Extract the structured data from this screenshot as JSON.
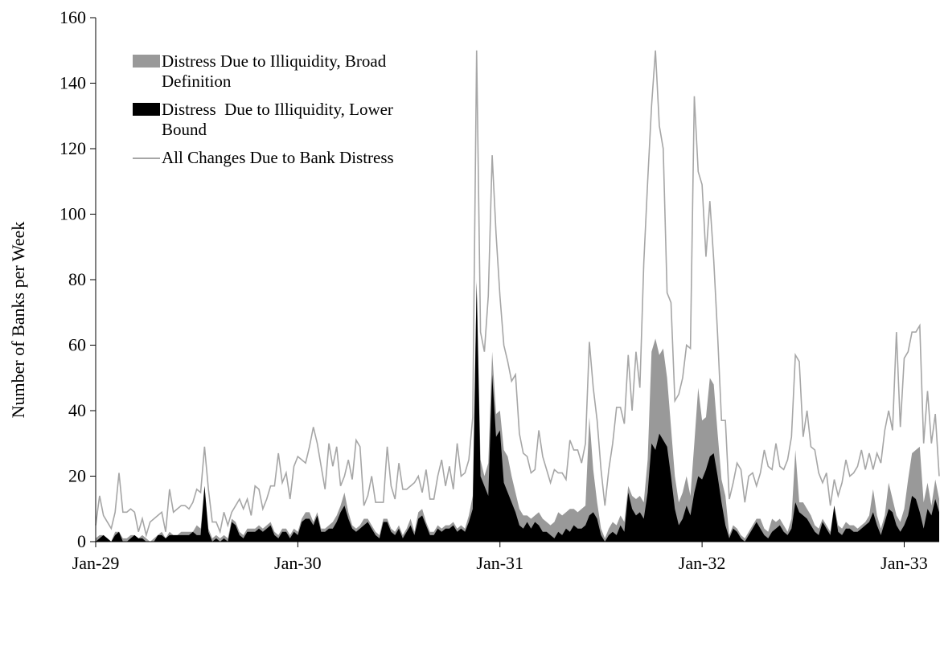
{
  "chart_data": {
    "type": "area",
    "y_label": "Number of Banks per Week",
    "legend": "upper left",
    "xlim": [
      0,
      217
    ],
    "xticks": [
      {
        "value": 0,
        "label": "Jan-29"
      },
      {
        "value": 52,
        "label": "Jan-30"
      },
      {
        "value": 104,
        "label": "Jan-31"
      },
      {
        "value": 156,
        "label": "Jan-32"
      },
      {
        "value": 208,
        "label": "Jan-33"
      }
    ],
    "ylim": [
      0,
      160
    ],
    "yticks": [
      0,
      20,
      40,
      60,
      80,
      100,
      120,
      140,
      160
    ],
    "x": [
      0,
      1,
      2,
      3,
      4,
      5,
      6,
      7,
      8,
      9,
      10,
      11,
      12,
      13,
      14,
      15,
      16,
      17,
      18,
      19,
      20,
      21,
      22,
      23,
      24,
      25,
      26,
      27,
      28,
      29,
      30,
      31,
      32,
      33,
      34,
      35,
      36,
      37,
      38,
      39,
      40,
      41,
      42,
      43,
      44,
      45,
      46,
      47,
      48,
      49,
      50,
      51,
      52,
      53,
      54,
      55,
      56,
      57,
      58,
      59,
      60,
      61,
      62,
      63,
      64,
      65,
      66,
      67,
      68,
      69,
      70,
      71,
      72,
      73,
      74,
      75,
      76,
      77,
      78,
      79,
      80,
      81,
      82,
      83,
      84,
      85,
      86,
      87,
      88,
      89,
      90,
      91,
      92,
      93,
      94,
      95,
      96,
      97,
      98,
      99,
      100,
      101,
      102,
      103,
      104,
      105,
      106,
      107,
      108,
      109,
      110,
      111,
      112,
      113,
      114,
      115,
      116,
      117,
      118,
      119,
      120,
      121,
      122,
      123,
      124,
      125,
      126,
      127,
      128,
      129,
      130,
      131,
      132,
      133,
      134,
      135,
      136,
      137,
      138,
      139,
      140,
      141,
      142,
      143,
      144,
      145,
      146,
      147,
      148,
      149,
      150,
      151,
      152,
      153,
      154,
      155,
      156,
      157,
      158,
      159,
      160,
      161,
      162,
      163,
      164,
      165,
      166,
      167,
      168,
      169,
      170,
      171,
      172,
      173,
      174,
      175,
      176,
      177,
      178,
      179,
      180,
      181,
      182,
      183,
      184,
      185,
      186,
      187,
      188,
      189,
      190,
      191,
      192,
      193,
      194,
      195,
      196,
      197,
      198,
      199,
      200,
      201,
      202,
      203,
      204,
      205,
      206,
      207,
      208,
      209,
      210,
      211,
      212,
      213,
      214,
      215,
      216,
      217
    ],
    "series": [
      {
        "name": "Distress Due to Illiquidity, Broad Definition",
        "color": "#999999",
        "kind": "area",
        "values": [
          1,
          2,
          2,
          1,
          0,
          3,
          3,
          1,
          1,
          2,
          2,
          1,
          2,
          1,
          0,
          1,
          2,
          3,
          1,
          3,
          2,
          2,
          3,
          3,
          3,
          3,
          5,
          4,
          17,
          4,
          1,
          2,
          1,
          2,
          1,
          7,
          6,
          3,
          2,
          4,
          4,
          4,
          5,
          4,
          5,
          6,
          3,
          2,
          4,
          4,
          2,
          4,
          3,
          7,
          9,
          9,
          6,
          9,
          4,
          4,
          5,
          6,
          8,
          11,
          15,
          9,
          5,
          4,
          5,
          7,
          7,
          5,
          3,
          2,
          7,
          7,
          4,
          3,
          5,
          2,
          4,
          7,
          3,
          9,
          10,
          6,
          3,
          3,
          5,
          4,
          5,
          5,
          6,
          4,
          5,
          4,
          8,
          14,
          80,
          25,
          20,
          24,
          58,
          39,
          40,
          28,
          26,
          20,
          15,
          10,
          8,
          8,
          7,
          8,
          9,
          7,
          6,
          5,
          6,
          9,
          8,
          9,
          10,
          10,
          9,
          10,
          11,
          38,
          22,
          12,
          4,
          1,
          4,
          6,
          5,
          8,
          6,
          17,
          14,
          13,
          14,
          12,
          25,
          58,
          62,
          57,
          59,
          50,
          35,
          20,
          12,
          15,
          20,
          14,
          30,
          47,
          37,
          38,
          50,
          48,
          33,
          19,
          14,
          2,
          5,
          4,
          2,
          1,
          3,
          5,
          7,
          7,
          4,
          3,
          7,
          6,
          7,
          5,
          3,
          7,
          28,
          12,
          12,
          10,
          8,
          5,
          4,
          7,
          5,
          3,
          11,
          5,
          4,
          6,
          5,
          5,
          4,
          5,
          6,
          8,
          16,
          8,
          4,
          8,
          18,
          13,
          8,
          6,
          10,
          19,
          27,
          28,
          29,
          12,
          18,
          11,
          19,
          13
        ]
      },
      {
        "name": "Distress  Due to Illiquidity, Lower Bound",
        "color": "#000000",
        "kind": "area",
        "values": [
          0,
          1,
          2,
          1,
          0,
          2,
          3,
          0,
          0,
          1,
          2,
          1,
          1,
          0,
          0,
          0,
          2,
          2,
          1,
          2,
          2,
          2,
          2,
          2,
          2,
          3,
          2,
          2,
          17,
          3,
          0,
          1,
          0,
          1,
          0,
          6,
          5,
          2,
          1,
          3,
          3,
          3,
          4,
          3,
          4,
          5,
          2,
          1,
          3,
          3,
          1,
          3,
          2,
          6,
          7,
          7,
          5,
          8,
          3,
          3,
          4,
          4,
          6,
          9,
          11,
          7,
          4,
          3,
          4,
          5,
          6,
          4,
          2,
          1,
          6,
          6,
          3,
          2,
          4,
          1,
          3,
          5,
          2,
          7,
          8,
          5,
          2,
          2,
          4,
          3,
          4,
          4,
          5,
          3,
          4,
          3,
          6,
          10,
          79,
          20,
          17,
          14,
          51,
          32,
          34,
          18,
          15,
          12,
          9,
          5,
          4,
          6,
          4,
          6,
          5,
          3,
          3,
          2,
          1,
          3,
          2,
          4,
          3,
          5,
          4,
          4,
          5,
          8,
          9,
          7,
          2,
          0,
          2,
          3,
          2,
          5,
          3,
          15,
          10,
          8,
          9,
          7,
          15,
          30,
          28,
          33,
          31,
          29,
          20,
          10,
          5,
          7,
          11,
          8,
          15,
          20,
          19,
          22,
          26,
          27,
          20,
          12,
          5,
          1,
          4,
          3,
          1,
          0,
          2,
          4,
          6,
          4,
          2,
          1,
          3,
          4,
          5,
          3,
          2,
          4,
          12,
          9,
          8,
          7,
          5,
          3,
          2,
          6,
          4,
          2,
          11,
          3,
          2,
          4,
          4,
          3,
          3,
          4,
          5,
          6,
          9,
          5,
          2,
          6,
          10,
          9,
          5,
          3,
          5,
          8,
          14,
          13,
          9,
          4,
          10,
          8,
          13,
          9
        ]
      },
      {
        "name": "All Changes Due to Bank Distress",
        "color": "#a6a6a6",
        "kind": "line",
        "values": [
          5,
          14,
          8,
          6,
          4,
          9,
          21,
          9,
          9,
          10,
          9,
          3,
          7,
          2,
          6,
          7,
          8,
          9,
          3,
          16,
          9,
          10,
          11,
          11,
          10,
          12,
          16,
          15,
          29,
          16,
          6,
          6,
          3,
          9,
          5,
          9,
          11,
          13,
          10,
          13,
          8,
          17,
          16,
          10,
          13,
          17,
          17,
          27,
          18,
          21,
          13,
          23,
          26,
          25,
          24,
          29,
          35,
          30,
          23,
          16,
          30,
          23,
          29,
          17,
          20,
          25,
          19,
          31,
          29,
          11,
          14,
          20,
          12,
          12,
          12,
          29,
          17,
          13,
          24,
          16,
          16,
          17,
          18,
          20,
          15,
          22,
          13,
          13,
          20,
          25,
          17,
          23,
          16,
          30,
          20,
          21,
          25,
          38,
          150,
          64,
          58,
          75,
          118,
          94,
          75,
          60,
          55,
          49,
          51,
          33,
          27,
          26,
          21,
          22,
          34,
          26,
          22,
          18,
          22,
          21,
          21,
          19,
          31,
          28,
          28,
          24,
          30,
          61,
          47,
          37,
          22,
          11,
          22,
          30,
          41,
          41,
          36,
          57,
          40,
          58,
          47,
          85,
          110,
          133,
          150,
          127,
          120,
          76,
          73,
          43,
          45,
          50,
          60,
          59,
          136,
          113,
          109,
          87,
          104,
          86,
          63,
          37,
          37,
          13,
          18,
          24,
          22,
          12,
          20,
          21,
          17,
          21,
          28,
          23,
          22,
          30,
          23,
          22,
          25,
          32,
          57,
          55,
          32,
          40,
          29,
          28,
          21,
          18,
          21,
          11,
          19,
          14,
          18,
          25,
          20,
          21,
          23,
          28,
          22,
          27,
          22,
          27,
          24,
          34,
          40,
          34,
          64,
          35,
          56,
          58,
          64,
          64,
          66,
          30,
          46,
          30,
          39,
          20
        ]
      }
    ]
  }
}
